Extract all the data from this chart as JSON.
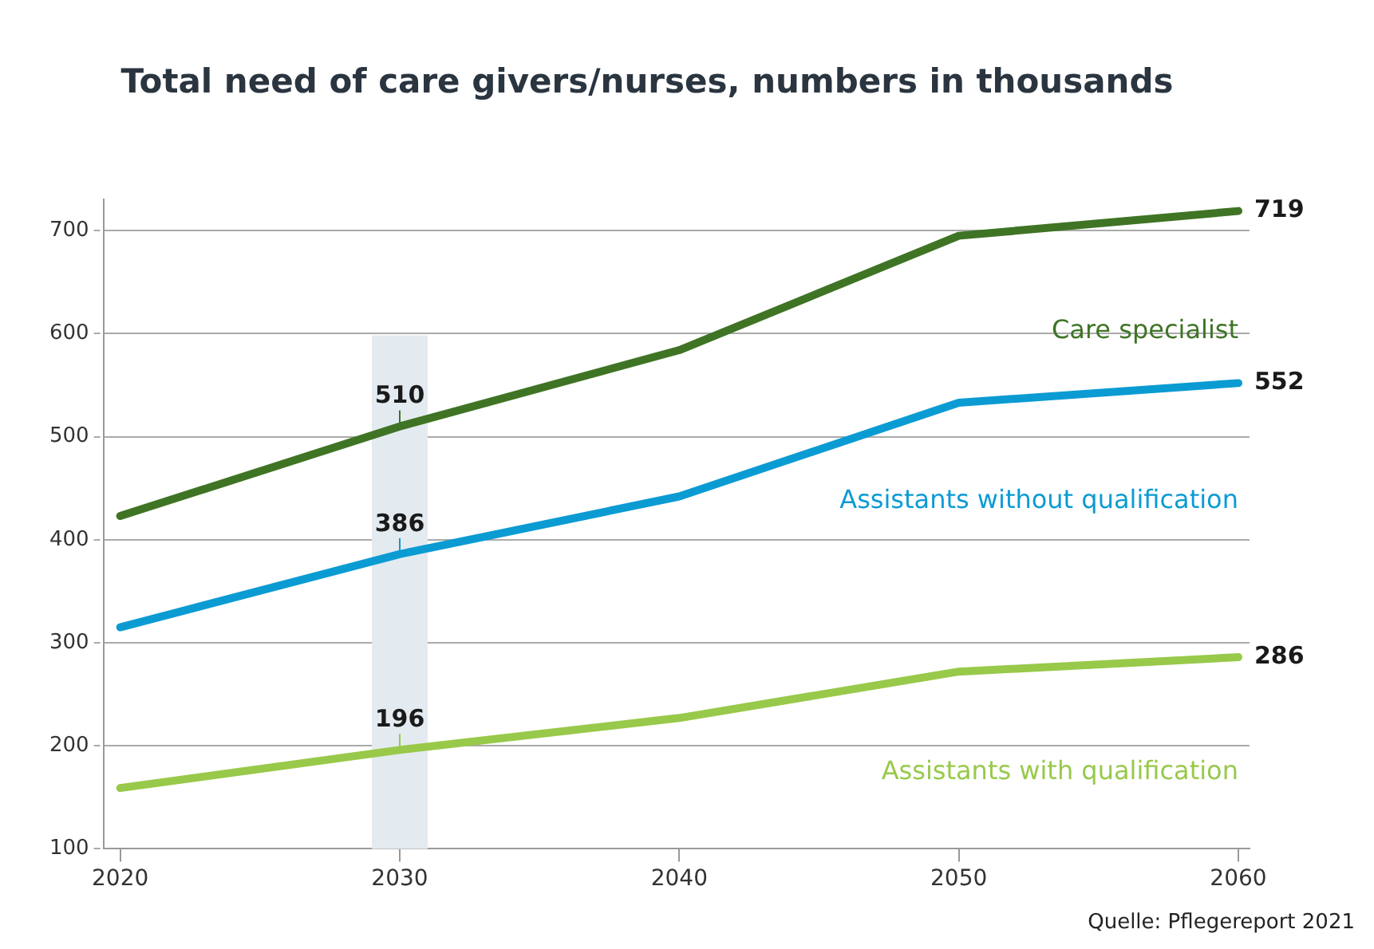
{
  "chart_data": {
    "type": "line",
    "title": "Total need of care givers/nurses, numbers in thousands",
    "x": [
      2020,
      2030,
      2040,
      2050,
      2060
    ],
    "series": [
      {
        "name": "Care specialist",
        "color": "#3f7425",
        "values": [
          423,
          510,
          584,
          695,
          719
        ],
        "value_labels": [
          null,
          "510",
          null,
          null,
          "719"
        ]
      },
      {
        "name": "Assistants without qualification",
        "color": "#0b9bd3",
        "values": [
          315,
          386,
          442,
          533,
          552
        ],
        "value_labels": [
          null,
          "386",
          null,
          null,
          "552"
        ]
      },
      {
        "name": "Assistants with qualification",
        "color": "#98c94a",
        "values": [
          159,
          196,
          227,
          272,
          286
        ],
        "value_labels": [
          null,
          "196",
          null,
          null,
          "286"
        ]
      }
    ],
    "xlim": [
      2019.4,
      2060.4
    ],
    "xticks": [
      2020,
      2030,
      2040,
      2050,
      2060
    ],
    "ylim": [
      100,
      730
    ],
    "yticks": [
      100,
      200,
      300,
      400,
      500,
      600,
      700
    ],
    "grid": "y",
    "legend": false,
    "marker": "none",
    "line_style": "solid",
    "bands": [
      {
        "axis": "x",
        "from": 2029,
        "to": 2031,
        "color": "#e3ebf0"
      }
    ],
    "annotations": [
      "Quelle: Pflegereport 2021"
    ]
  }
}
